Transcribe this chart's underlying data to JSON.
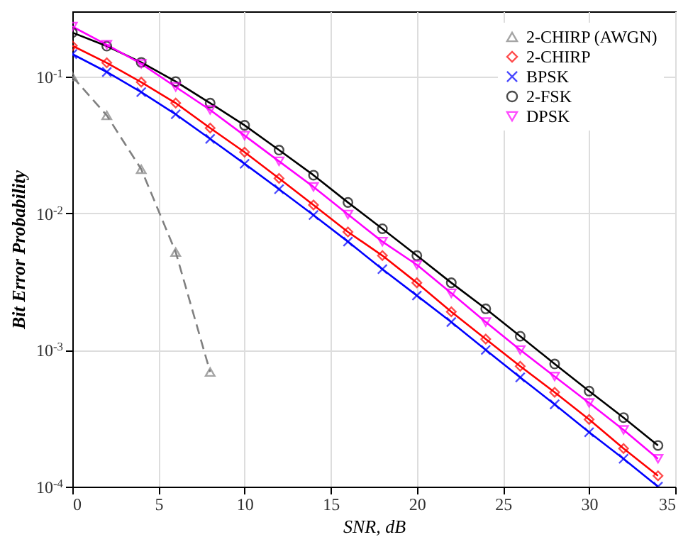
{
  "chart_data": {
    "type": "line",
    "xlabel": "SNR, dB",
    "ylabel": "Bit Error Probability",
    "x": [
      0,
      2,
      4,
      6,
      8,
      10,
      12,
      14,
      16,
      18,
      20,
      22,
      24,
      26,
      28,
      30,
      32,
      34
    ],
    "xlim": [
      0,
      35
    ],
    "xticks": [
      0,
      5,
      10,
      15,
      20,
      25,
      30,
      35
    ],
    "ylim": [
      0.0001,
      0.3
    ],
    "yticks": [
      {
        "value": 0.0001,
        "label": "10$^{-4}$"
      },
      {
        "value": 0.001,
        "label": "10$^{-3}$"
      },
      {
        "value": 0.01,
        "label": "10$^{-2}$"
      },
      {
        "value": 0.1,
        "label": "10$^{-1}$"
      }
    ],
    "log": "y",
    "grid": true,
    "legend": "top right",
    "series": [
      {
        "name": "2-CHIRP (AWGN)",
        "color": "#808080",
        "marker": "triangle",
        "line_style": "dashed",
        "x": [
          0,
          2,
          4,
          6,
          8
        ],
        "values": [
          0.1,
          0.052,
          0.021,
          0.0052,
          0.00069
        ]
      },
      {
        "name": "2-CHIRP",
        "color": "#ff0000",
        "marker": "diamond",
        "line_style": "solid",
        "values": [
          0.168,
          0.126,
          0.091,
          0.064,
          0.042,
          0.028,
          0.018,
          0.0115,
          0.0073,
          0.0049,
          0.0031,
          0.0019,
          0.0012,
          0.00076,
          0.00049,
          0.00031,
          0.00019,
          0.00012
        ]
      },
      {
        "name": "BPSK",
        "color": "#0000ff",
        "marker": "cross",
        "line_style": "solid",
        "values": [
          0.146,
          0.108,
          0.077,
          0.053,
          0.035,
          0.023,
          0.015,
          0.0097,
          0.0062,
          0.0039,
          0.0025,
          0.0016,
          0.001,
          0.00063,
          0.0004,
          0.00025,
          0.00016,
          0.0001
        ]
      },
      {
        "name": "2-FSK",
        "color": "#000000",
        "marker": "circle",
        "line_style": "solid",
        "values": [
          0.21,
          0.167,
          0.127,
          0.092,
          0.064,
          0.044,
          0.029,
          0.019,
          0.012,
          0.0077,
          0.0049,
          0.0031,
          0.002,
          0.00126,
          0.00079,
          0.0005,
          0.00032,
          0.0002
        ]
      },
      {
        "name": "DPSK",
        "color": "#ff00ff",
        "marker": "triangle-down",
        "line_style": "solid",
        "values": [
          0.232,
          0.171,
          0.124,
          0.084,
          0.057,
          0.037,
          0.024,
          0.0156,
          0.0098,
          0.0062,
          0.0042,
          0.0026,
          0.0016,
          0.001,
          0.00064,
          0.00041,
          0.00026,
          0.00016
        ]
      }
    ]
  }
}
